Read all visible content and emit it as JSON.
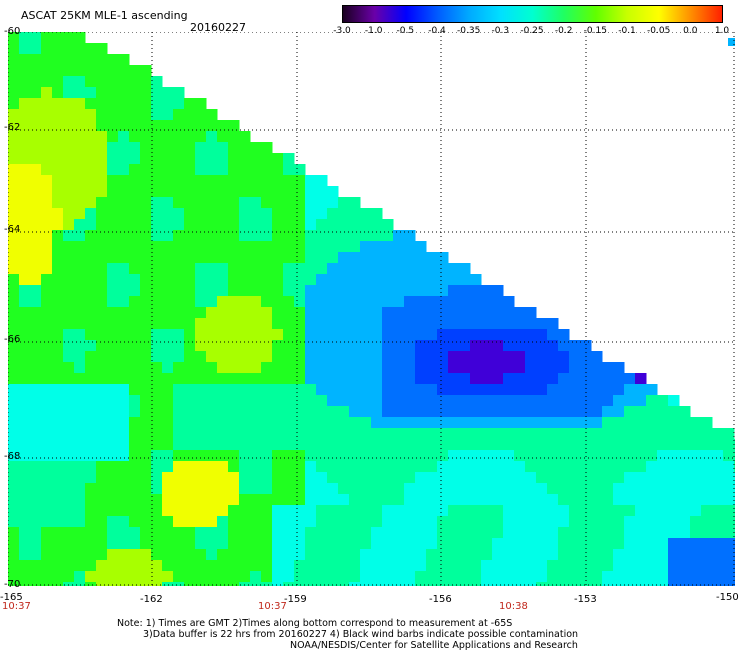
{
  "header": {
    "title": "ASCAT 25KM MLE-1 ascending",
    "date": "20160227"
  },
  "colorbar": {
    "labels": [
      "-3.0",
      "-1.0",
      "-0.5",
      "-0.4",
      "-0.35",
      "-0.3",
      "-0.25",
      "-0.2",
      "-0.15",
      "-0.1",
      "-0.05",
      "0.0",
      "1.0"
    ],
    "colors": [
      "#1a0020",
      "#6a00a8",
      "#0000ff",
      "#005cff",
      "#00aaff",
      "#00e0ff",
      "#00ffd0",
      "#20ff60",
      "#60ff00",
      "#c8ff00",
      "#ffff00",
      "#ff9000",
      "#ff2000"
    ]
  },
  "map": {
    "lat_ticks": [
      "-60",
      "-62",
      "-64",
      "-66",
      "-68",
      "-70"
    ],
    "lon_ticks": [
      "-165",
      "-162",
      "-159",
      "-156",
      "-153",
      "-150"
    ],
    "time_labels": [
      "10:37",
      "10:37",
      "10:38"
    ],
    "colors": {
      "yellow": "#f0ff00",
      "yellowgreen": "#a8ff00",
      "green": "#20ff20",
      "mint": "#00ff9c",
      "cyan": "#00ffe8",
      "sky": "#00b4ff",
      "blue": "#0070ff",
      "deepblue": "#0040ff",
      "violet": "#4000d8"
    }
  },
  "notes": {
    "line1": "Note: 1) Times are GMT 2)Times along bottom correspond to measurement at -65S",
    "line2": "3)Data buffer is 22 hrs from 20160227 4) Black wind barbs indicate possible contamination",
    "line3": "NOAA/NESDIS/Center for Satellite Applications and Research"
  }
}
